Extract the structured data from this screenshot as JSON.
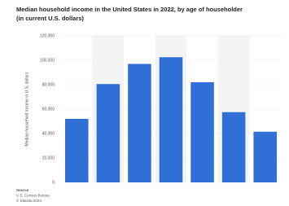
{
  "chart_data": {
    "type": "bar",
    "title": "Median household income in the United States in 2022, by age of householder (in current U.S. dollars)",
    "y_label": "Median household income in U.S. dollars",
    "categories": [
      null,
      null,
      null,
      null,
      null,
      null,
      null
    ],
    "values": [
      52000,
      80500,
      97000,
      102500,
      82000,
      57500,
      41500
    ],
    "color": "#2f6fd6",
    "ylim": [
      0,
      120000
    ],
    "yticks": [
      0,
      {
        "value": 20000,
        "label": "20,000"
      },
      {
        "value": 40000,
        "label": "40,000"
      },
      {
        "value": 60000,
        "label": "60,000"
      },
      {
        "value": 80000,
        "label": "80,000"
      },
      {
        "value": 100000,
        "label": "100,000"
      },
      {
        "value": 120000,
        "label": "120,000"
      }
    ],
    "grid": true,
    "source": [
      "Source",
      "U.S. Census Bureau",
      "© Statista 2024"
    ]
  }
}
